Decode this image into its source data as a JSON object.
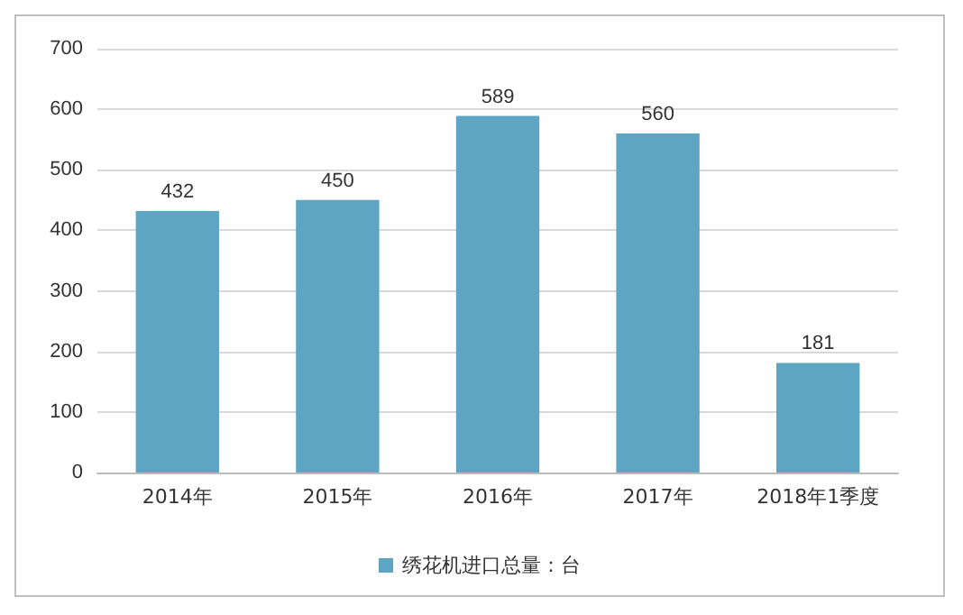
{
  "chart_data": {
    "type": "bar",
    "categories": [
      "2014年",
      "2015年",
      "2016年",
      "2017年",
      "2018年1季度"
    ],
    "series": [
      {
        "name": "绣花机进口总量：台",
        "color": "#5ea5c3",
        "values": [
          432,
          450,
          589,
          560,
          181
        ]
      }
    ],
    "ylim": [
      0,
      700
    ],
    "yticks": [
      0,
      100,
      200,
      300,
      400,
      500,
      600,
      700
    ],
    "grid": "y",
    "legend": "bottom",
    "data_labels": true
  }
}
